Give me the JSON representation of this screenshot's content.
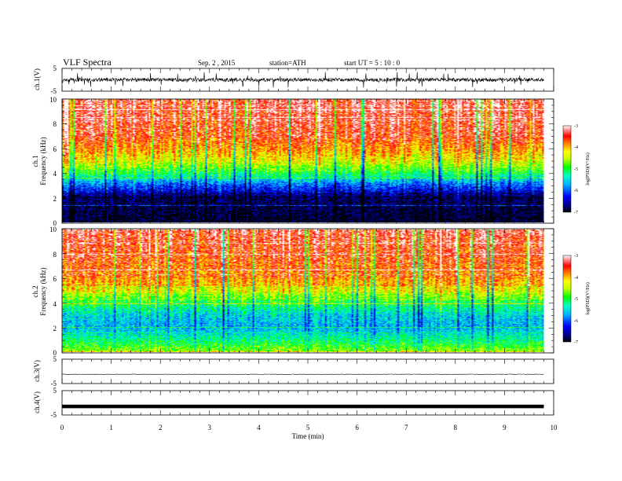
{
  "header": {
    "title": "VLF  Spectra",
    "date": "Sep. 2  , 2015",
    "station": "station=ATH",
    "start": "start  UT  =    5  : 10 : 0"
  },
  "chart_data": [
    {
      "type": "line",
      "panel": "ch1-waveform",
      "ylabel": "ch.1(V)",
      "ylim": [
        -5,
        5
      ],
      "yticks": [
        "5",
        "-5"
      ],
      "x_range": [
        0,
        10
      ],
      "data_end_min": 9.8,
      "waveform": "noise around 0 V with bursts to about ±3 V"
    },
    {
      "type": "heatmap",
      "panel": "ch1-spectrogram",
      "ylabel": "ch.1\nFrequency  (kHz)",
      "ylim": [
        0,
        10
      ],
      "yticks": [
        "0",
        "2",
        "4",
        "6",
        "8",
        "10"
      ],
      "x_range": [
        0,
        10
      ],
      "data_end_min": 9.8,
      "colorbar": {
        "label": "log(PSD)(V²/Hz)",
        "range": [
          -7,
          -3
        ],
        "ticks": [
          "-3",
          "-4",
          "-5",
          "-6",
          "-7"
        ]
      },
      "level_profile": [
        {
          "freq_khz": 0,
          "logpsd": -7
        },
        {
          "freq_khz": 2,
          "logpsd": -6.8
        },
        {
          "freq_khz": 3,
          "logpsd": -6
        },
        {
          "freq_khz": 4,
          "logpsd": -5
        },
        {
          "freq_khz": 5,
          "logpsd": -4.3
        },
        {
          "freq_khz": 6,
          "logpsd": -3.9
        },
        {
          "freq_khz": 7,
          "logpsd": -3.5
        },
        {
          "freq_khz": 10,
          "logpsd": -3.3
        }
      ]
    },
    {
      "type": "heatmap",
      "panel": "ch2-spectrogram",
      "ylabel": "ch.2\nFrequency  (kHz)",
      "ylim": [
        0,
        10
      ],
      "yticks": [
        "0",
        "2",
        "4",
        "6",
        "8",
        "10"
      ],
      "x_range": [
        0,
        10
      ],
      "data_end_min": 9.8,
      "colorbar": {
        "label": "log(PSD)(V²/Hz)",
        "range": [
          -7,
          -3
        ],
        "ticks": [
          "-3",
          "-4",
          "-5",
          "-6",
          "-7"
        ]
      },
      "level_profile": [
        {
          "freq_khz": 0,
          "logpsd": -4.6
        },
        {
          "freq_khz": 1,
          "logpsd": -5.2
        },
        {
          "freq_khz": 2,
          "logpsd": -5.7
        },
        {
          "freq_khz": 3,
          "logpsd": -5.5
        },
        {
          "freq_khz": 4,
          "logpsd": -5
        },
        {
          "freq_khz": 5,
          "logpsd": -4.3
        },
        {
          "freq_khz": 6,
          "logpsd": -3.8
        },
        {
          "freq_khz": 10,
          "logpsd": -3.3
        }
      ]
    },
    {
      "type": "line",
      "panel": "ch3-waveform",
      "ylabel": "ch.3(V)",
      "ylim": [
        -5,
        5
      ],
      "yticks": [
        "5",
        "-5"
      ],
      "x_range": [
        0,
        10
      ],
      "data_end_min": 9.8,
      "level_v": -1.2
    },
    {
      "type": "line",
      "panel": "ch4-waveform",
      "ylabel": "ch.4(V)",
      "ylim": [
        -5,
        5
      ],
      "yticks": [
        "5",
        "-5"
      ],
      "x_range": [
        0,
        10
      ],
      "data_end_min": 9.8,
      "level_v": -1.5,
      "xlabel": "Time  (min)",
      "xticks": [
        "0",
        "1",
        "2",
        "3",
        "4",
        "5",
        "6",
        "7",
        "8",
        "9",
        "10"
      ]
    }
  ]
}
